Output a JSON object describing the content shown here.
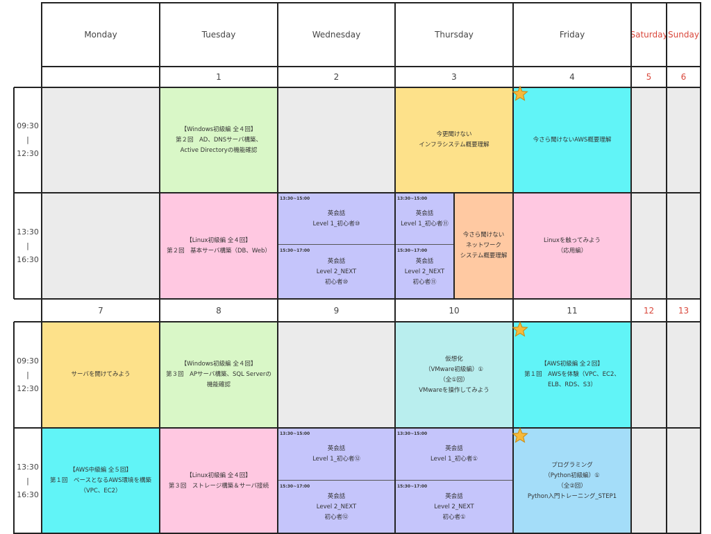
{
  "colors": {
    "gray": "#ebebeb",
    "green": "#d9f7c7",
    "yellow": "#fde18a",
    "cyan": "#61f4f7",
    "pink": "#ffc8e1",
    "lavender": "#c5c5fb",
    "peach": "#ffc9a2",
    "teal": "#b9eeee",
    "blue": "#a4ddf9",
    "weekend_red": "#d9473b",
    "star": "#f6b93b"
  },
  "days": [
    "Monday",
    "Tuesday",
    "Wednesday",
    "Thursday",
    "Friday",
    "Saturday",
    "Sunday"
  ],
  "time_slots": [
    {
      "start": "09:30",
      "sep": "|",
      "end": "12:30"
    },
    {
      "start": "13:30",
      "sep": "|",
      "end": "16:30"
    }
  ],
  "weeks": [
    {
      "dates": [
        "",
        "1",
        "2",
        "3",
        "4",
        "5",
        "6"
      ],
      "am": {
        "tuesday": [
          "【Windows初級編 全４回】",
          "第２回　AD、DNSサーバ構築、",
          "Active Directoryの機能確認"
        ],
        "thursday": [
          "今更聞けない",
          "インフラシステム概要理解"
        ],
        "friday": [
          "今さら聞けないAWS概要理解"
        ]
      },
      "pm": {
        "tuesday": [
          "【Linux初級編 全４回】",
          "第２回　基本サーバ構築（DB、Web）"
        ],
        "wednesday_1": {
          "slot": "13:30~15:00",
          "lines": [
            "英会話",
            "Level 1_初心者⑩"
          ]
        },
        "wednesday_2": {
          "slot": "15:30~17:00",
          "lines": [
            "英会話",
            "Level 2_NEXT",
            "初心者⑩"
          ]
        },
        "thursday_1": {
          "slot": "13:30~15:00",
          "lines": [
            "英会話",
            "Level 1_初心者⑪"
          ]
        },
        "thursday_2": {
          "slot": "15:30~17:00",
          "lines": [
            "英会話",
            "Level 2_NEXT",
            "初心者⑪"
          ]
        },
        "thursday_side": [
          "今さら聞けない",
          "ネットワーク",
          "システム概要理解"
        ],
        "friday": [
          "Linuxを触ってみよう",
          "（応用編）"
        ]
      }
    },
    {
      "dates": [
        "7",
        "8",
        "9",
        "10",
        "11",
        "12",
        "13"
      ],
      "am": {
        "monday": [
          "サーバを開けてみよう"
        ],
        "tuesday": [
          "【Windows初級編 全４回】",
          "第３回　APサーバ構築、SQL Serverの",
          "機能確認"
        ],
        "thursday": [
          "仮想化",
          "（VMware初級編）①",
          "（全①回）",
          "VMwareを操作してみよう"
        ],
        "friday": [
          "【AWS初級編 全２回】",
          "第１回　AWSを体験（VPC、EC2、",
          "ELB、RDS、S3）"
        ]
      },
      "pm": {
        "monday": [
          "【AWS中級編 全５回】",
          "第１回　ベースとなるAWS環境を構築",
          "（VPC、EC2）"
        ],
        "tuesday": [
          "【Linux初級編 全４回】",
          "第３回　ストレージ構築＆サーバ接続"
        ],
        "wednesday_1": {
          "slot": "13:30~15:00",
          "lines": [
            "英会話",
            "Level 1_初心者⑫"
          ]
        },
        "wednesday_2": {
          "slot": "15:30~17:00",
          "lines": [
            "英会話",
            "Level 2_NEXT",
            "初心者⑫"
          ]
        },
        "thursday_1": {
          "slot": "13:30~15:00",
          "lines": [
            "英会話",
            "Level 1_初心者①"
          ]
        },
        "thursday_2": {
          "slot": "15:30~17:00",
          "lines": [
            "英会話",
            "Level 2_NEXT",
            "初心者①"
          ]
        },
        "friday": [
          "プログラミング",
          "（Python初級編）①",
          "（全②回）",
          "Python入門トレーニング_STEP1"
        ]
      }
    }
  ]
}
